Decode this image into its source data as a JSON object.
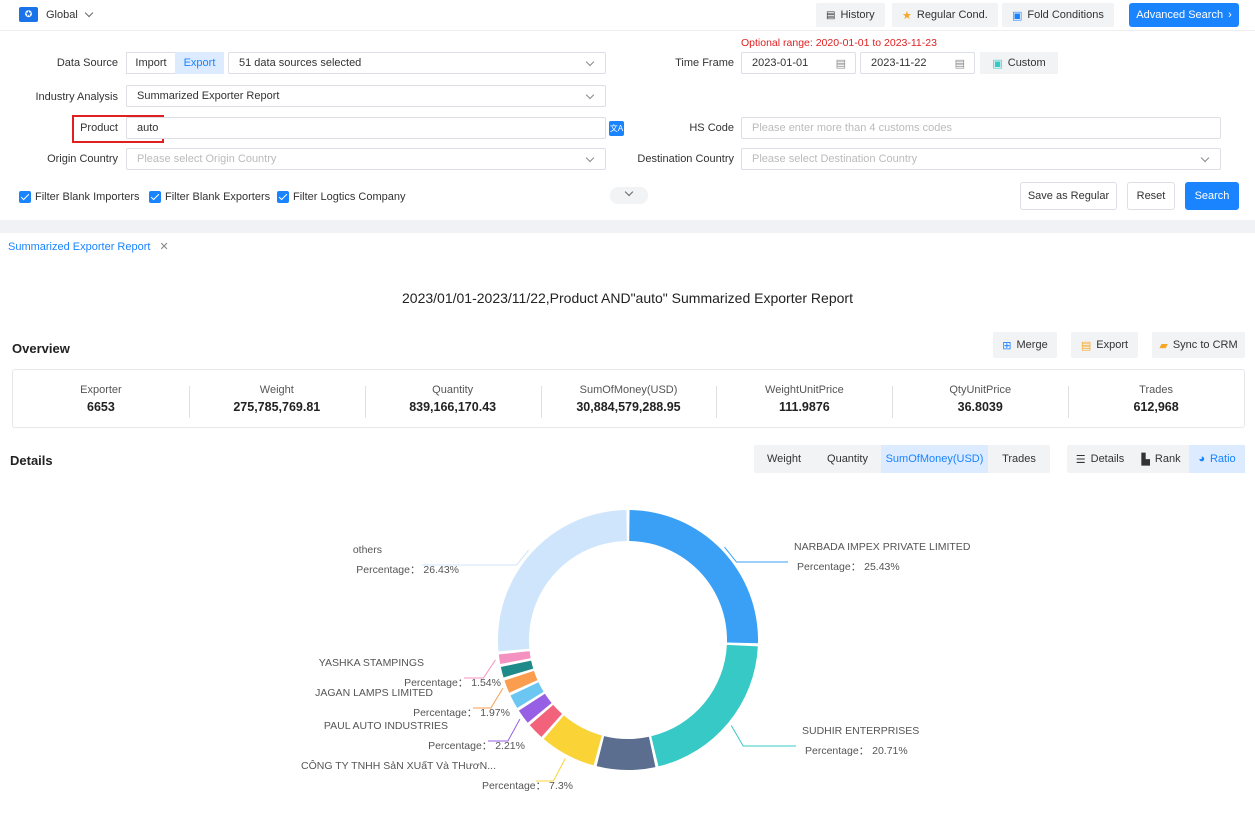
{
  "topbar": {
    "scope": "Global",
    "history": "History",
    "regular_cond": "Regular Cond.",
    "fold_conditions": "Fold Conditions",
    "advanced_search": "Advanced Search"
  },
  "filters": {
    "optional_range": "Optional range: 2020-01-01 to 2023-11-23",
    "data_source_label": "Data Source",
    "import_label": "Import",
    "export_label": "Export",
    "data_sources_value": "51 data sources selected",
    "time_frame_label": "Time Frame",
    "date_from": "2023-01-01",
    "date_to": "2023-11-22",
    "custom_label": "Custom",
    "industry_label": "Industry Analysis",
    "industry_value": "Summarized Exporter Report",
    "product_label": "Product",
    "product_value": "auto",
    "hs_label": "HS Code",
    "hs_placeholder": "Please enter more than 4 customs codes",
    "origin_label": "Origin Country",
    "origin_placeholder": "Please select Origin Country",
    "dest_label": "Destination Country",
    "dest_placeholder": "Please select Destination Country",
    "filter_importers": "Filter Blank Importers",
    "filter_exporters": "Filter Blank Exporters",
    "filter_logistics": "Filter Logtics Company",
    "save_regular": "Save as Regular",
    "reset": "Reset",
    "search": "Search"
  },
  "tab": {
    "label": "Summarized Exporter Report"
  },
  "report": {
    "title": "2023/01/01-2023/11/22,Product AND\"auto\" Summarized Exporter Report",
    "overview_label": "Overview",
    "merge": "Merge",
    "export": "Export",
    "sync_crm": "Sync to CRM",
    "stats": [
      {
        "key": "Exporter",
        "value": "6653"
      },
      {
        "key": "Weight",
        "value": "275,785,769.81"
      },
      {
        "key": "Quantity",
        "value": "839,166,170.43"
      },
      {
        "key": "SumOfMoney(USD)",
        "value": "30,884,579,288.95"
      },
      {
        "key": "WeightUnitPrice",
        "value": "111.9876"
      },
      {
        "key": "QtyUnitPrice",
        "value": "36.8039"
      },
      {
        "key": "Trades",
        "value": "612,968"
      }
    ],
    "details_label": "Details",
    "metric_tabs": [
      "Weight",
      "Quantity",
      "SumOfMoney(USD)",
      "Trades"
    ],
    "view_tabs": [
      "Details",
      "Rank",
      "Ratio"
    ]
  },
  "chart_data": {
    "type": "pie",
    "slices": [
      {
        "name": "NARBADA IMPEX PRIVATE LIMITED",
        "percent": 25.43,
        "color": "#3aa0f5",
        "label": "Percentage： 25.43%"
      },
      {
        "name": "SUDHIR ENTERPRISES",
        "percent": 20.71,
        "color": "#36c9c6",
        "label": "Percentage： 20.71%"
      },
      {
        "name": "",
        "percent": 7.6,
        "color": "#5b6e8f",
        "label": ""
      },
      {
        "name": "CÔNG TY TNHH SảN XUấT Và THươN...",
        "percent": 7.3,
        "color": "#fad337",
        "label": "Percentage： 7.3%"
      },
      {
        "name": "",
        "percent": 2.4,
        "color": "#f2637b",
        "label": ""
      },
      {
        "name": "PAUL AUTO INDUSTRIES",
        "percent": 2.21,
        "color": "#975fe4",
        "label": "Percentage： 2.21%"
      },
      {
        "name": "",
        "percent": 2.1,
        "color": "#6cc6f2",
        "label": ""
      },
      {
        "name": "JAGAN LAMPS LIMITED",
        "percent": 1.97,
        "color": "#fa9d4f",
        "label": "Percentage： 1.97%"
      },
      {
        "name": "",
        "percent": 1.7,
        "color": "#1f8a8a",
        "label": ""
      },
      {
        "name": "YASHKA STAMPINGS",
        "percent": 1.54,
        "color": "#f591c0",
        "label": "Percentage： 1.54%"
      },
      {
        "name": "others",
        "percent": 26.43,
        "color": "#cfe5fc",
        "label": "Percentage： 26.43%"
      }
    ]
  }
}
